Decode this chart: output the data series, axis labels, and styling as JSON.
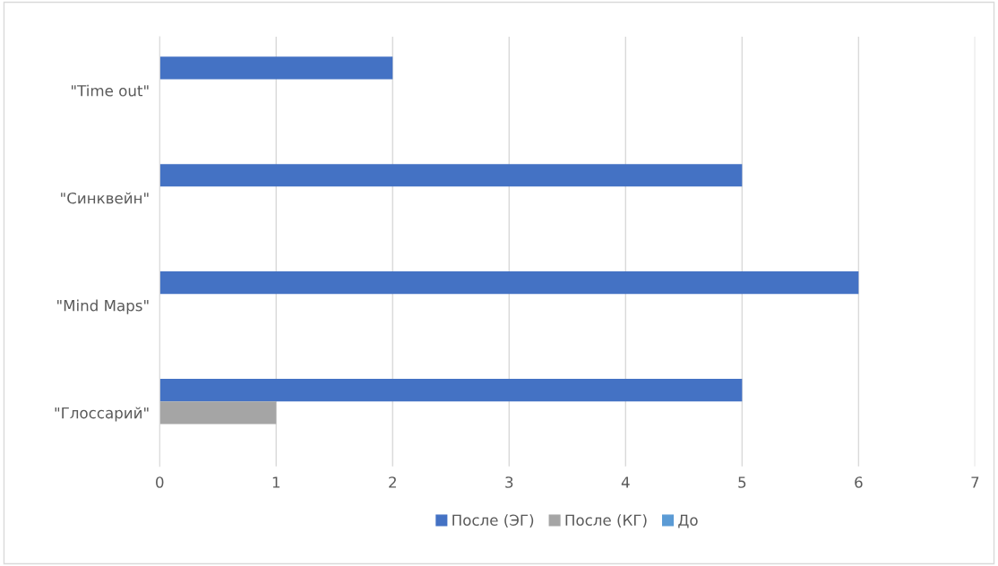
{
  "chart_data": {
    "type": "bar",
    "orientation": "horizontal",
    "categories": [
      "\"Time out\"",
      "\"Синквейн\"",
      "\"Mind Maps\"",
      "\"Глоссарий\""
    ],
    "series": [
      {
        "name": "После (ЭГ)",
        "color": "#4472c4",
        "values": [
          2,
          5,
          6,
          5
        ]
      },
      {
        "name": "После (КГ)",
        "color": "#a5a5a5",
        "values": [
          0,
          0,
          0,
          1
        ]
      },
      {
        "name": "До",
        "color": "#5b9bd5",
        "values": [
          0,
          0,
          0,
          0
        ]
      }
    ],
    "xlim": [
      0,
      7
    ],
    "xticks": [
      0,
      1,
      2,
      3,
      4,
      5,
      6,
      7
    ],
    "grid": "x",
    "legend": "bottom"
  }
}
